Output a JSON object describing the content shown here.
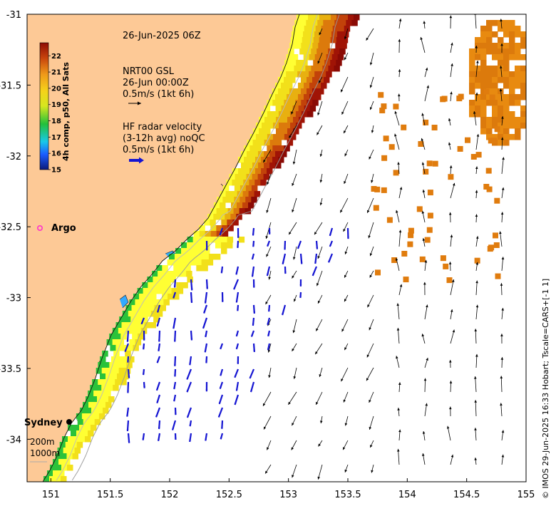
{
  "map": {
    "date_label": "26-Jun-2025 06Z",
    "axes": {
      "lon_min": 150.8,
      "lon_max": 155.0,
      "lat_min": -34.3,
      "lat_max": -31.0,
      "x_ticks": [
        151,
        151.5,
        152,
        152.5,
        153,
        153.5,
        154,
        154.5,
        155
      ],
      "x_tick_labels": [
        "151",
        "151.5",
        "152",
        "152.5",
        "153",
        "153.5",
        "154",
        "154.5",
        "155"
      ],
      "y_ticks": [
        -31,
        -31.5,
        -32,
        -32.5,
        -33,
        -33.5,
        -34
      ],
      "y_tick_labels": [
        "-31",
        "-31.5",
        "-32",
        "-32.5",
        "-33",
        "-33.5",
        "-34"
      ]
    },
    "colorbar": {
      "title": "4h comp, p50, All Sats",
      "min": 15,
      "max": 22.8,
      "tick_values": [
        15,
        16,
        17,
        18,
        19,
        20,
        21,
        22
      ],
      "tick_labels": [
        "15",
        "16",
        "17",
        "18",
        "19",
        "20",
        "21",
        "22"
      ]
    },
    "legend": {
      "gsl_lines": [
        "NRT00 GSL",
        "26-Jun 00:00Z",
        "0.5m/s (1kt 6h)"
      ],
      "hf_lines": [
        "HF radar velocity",
        "(3-12h avg) noQC",
        "0.5m/s (1kt 6h)"
      ]
    },
    "argo": {
      "label": "Argo",
      "lon": 150.9,
      "lat": -32.5,
      "color": "#ff33cc"
    },
    "city": {
      "label": "Sydney",
      "lon": 151.2,
      "lat": -33.87
    },
    "isobaths": [
      "200m",
      "1000m"
    ],
    "credit": "© IMOS 29-Jun-2025 16:33 Hobart; Tscale=CARS+[-1 1]",
    "colors": {
      "land": "#fdc996",
      "sea": "#ffffff",
      "hf_arrow": "#1414d2",
      "gsl_arrow": "#000000"
    }
  }
}
